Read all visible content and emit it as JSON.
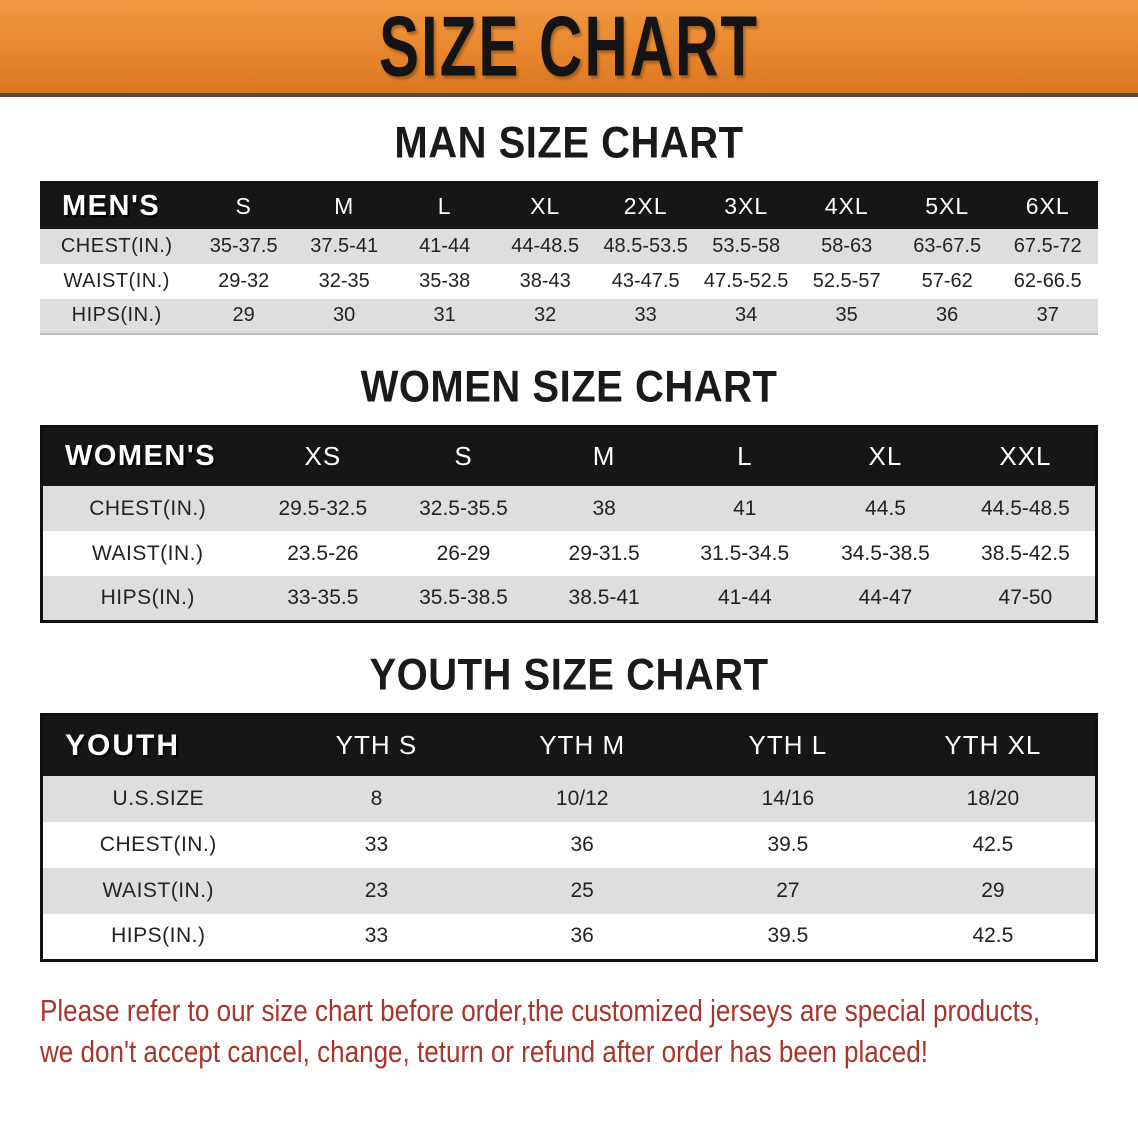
{
  "banner": {
    "title": "SIZE CHART"
  },
  "colors": {
    "banner_bg": "#E8862F",
    "header_bg": "#161616",
    "row_gray": "#DEDEDE",
    "disclaimer_red": "#A8352B"
  },
  "sections": [
    {
      "heading": "MAN SIZE CHART",
      "table": {
        "corner_label": "MEN'S",
        "columns": [
          "S",
          "M",
          "L",
          "XL",
          "2XL",
          "3XL",
          "4XL",
          "5XL",
          "6XL"
        ],
        "rows": [
          {
            "label": "CHEST(IN.)",
            "values": [
              "35-37.5",
              "37.5-41",
              "41-44",
              "44-48.5",
              "48.5-53.5",
              "53.5-58",
              "58-63",
              "63-67.5",
              "67.5-72"
            ]
          },
          {
            "label": "WAIST(IN.)",
            "values": [
              "29-32",
              "32-35",
              "35-38",
              "38-43",
              "43-47.5",
              "47.5-52.5",
              "52.5-57",
              "57-62",
              "62-66.5"
            ]
          },
          {
            "label": "HIPS(IN.)",
            "values": [
              "29",
              "30",
              "31",
              "32",
              "33",
              "34",
              "35",
              "36",
              "37"
            ]
          }
        ]
      }
    },
    {
      "heading": "WOMEN SIZE CHART",
      "table": {
        "corner_label": "WOMEN'S",
        "columns": [
          "XS",
          "S",
          "M",
          "L",
          "XL",
          "XXL"
        ],
        "rows": [
          {
            "label": "CHEST(IN.)",
            "values": [
              "29.5-32.5",
              "32.5-35.5",
              "38",
              "41",
              "44.5",
              "44.5-48.5"
            ]
          },
          {
            "label": "WAIST(IN.)",
            "values": [
              "23.5-26",
              "26-29",
              "29-31.5",
              "31.5-34.5",
              "34.5-38.5",
              "38.5-42.5"
            ]
          },
          {
            "label": "HIPS(IN.)",
            "values": [
              "33-35.5",
              "35.5-38.5",
              "38.5-41",
              "41-44",
              "44-47",
              "47-50"
            ]
          }
        ]
      }
    },
    {
      "heading": "YOUTH SIZE CHART",
      "table": {
        "corner_label": "YOUTH",
        "columns": [
          "YTH S",
          "YTH M",
          "YTH L",
          "YTH XL"
        ],
        "rows": [
          {
            "label": "U.S.SIZE",
            "values": [
              "8",
              "10/12",
              "14/16",
              "18/20"
            ]
          },
          {
            "label": "CHEST(IN.)",
            "values": [
              "33",
              "36",
              "39.5",
              "42.5"
            ]
          },
          {
            "label": "WAIST(IN.)",
            "values": [
              "23",
              "25",
              "27",
              "29"
            ]
          },
          {
            "label": "HIPS(IN.)",
            "values": [
              "33",
              "36",
              "39.5",
              "42.5"
            ]
          }
        ]
      }
    }
  ],
  "disclaimer": {
    "line1": "Please refer to our size chart before order,the customized jerseys are special products,",
    "line2": "we don't accept cancel, change, teturn or refund after order has been placed!"
  }
}
